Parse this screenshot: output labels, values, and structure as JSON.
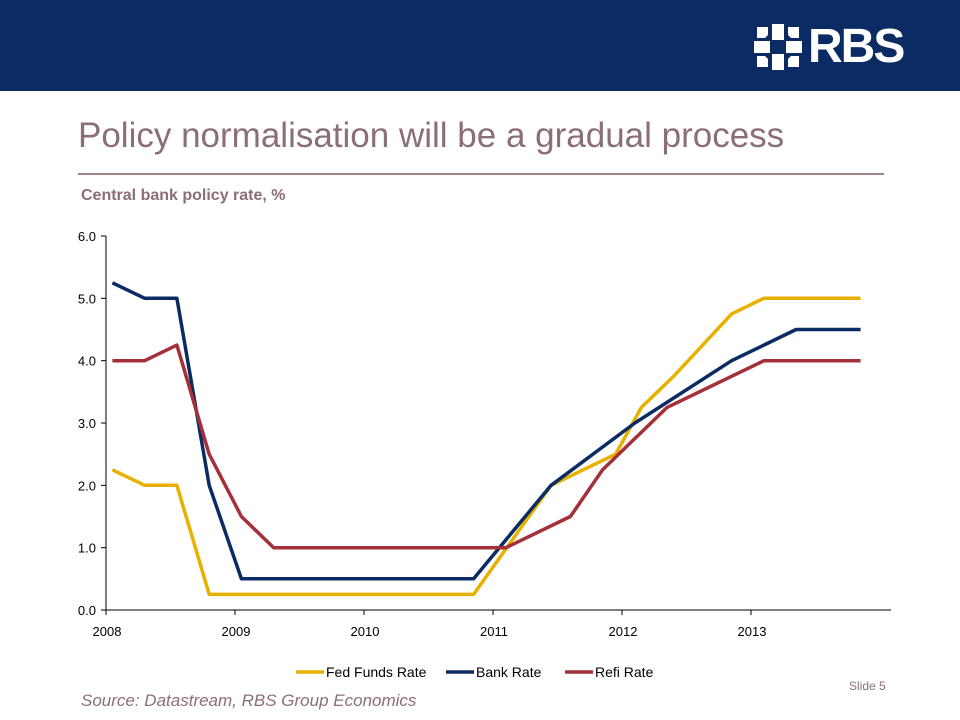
{
  "slide": {
    "title": "Policy normalisation will be a gradual process",
    "source": "Source: Datastream, RBS Group Economics",
    "slide_number": "Slide 5",
    "brand": "RBS",
    "colors": {
      "header": "#0a2b63",
      "title": "#8b6f74",
      "fed": "#e8b100",
      "boe": "#0a2b63",
      "ecb": "#a5303a"
    }
  },
  "chart_data": {
    "type": "line",
    "title": "Central bank policy rate, %",
    "xlabel": "",
    "ylabel": "",
    "xlim": [
      2008.0,
      2013.93
    ],
    "ylim": [
      0,
      6
    ],
    "yticks": [
      "0.0",
      "1.0",
      "2.0",
      "3.0",
      "4.0",
      "5.0",
      "6.0"
    ],
    "xticks": [
      "2008",
      "2009",
      "2010",
      "2011",
      "2012",
      "2013"
    ],
    "grid": false,
    "legend": "bottom",
    "series": [
      {
        "name": "Fed Funds Rate",
        "color": "#e8b100",
        "x": [
          2008.05,
          2008.3,
          2008.55,
          2008.8,
          2010.85,
          2011.45,
          2011.95,
          2012.15,
          2012.4,
          2012.85,
          2013.1,
          2013.85
        ],
        "y": [
          2.25,
          2.0,
          2.0,
          0.25,
          0.25,
          2.0,
          2.5,
          3.25,
          3.75,
          4.75,
          5.0,
          5.0
        ]
      },
      {
        "name": "Bank Rate",
        "color": "#0a2b63",
        "x": [
          2008.05,
          2008.3,
          2008.55,
          2008.8,
          2009.05,
          2010.85,
          2011.45,
          2012.1,
          2012.85,
          2013.35,
          2013.85
        ],
        "y": [
          5.25,
          5.0,
          5.0,
          2.0,
          0.5,
          0.5,
          2.0,
          3.0,
          4.0,
          4.5,
          4.5
        ]
      },
      {
        "name": "Refi Rate",
        "color": "#a5303a",
        "x": [
          2008.05,
          2008.3,
          2008.55,
          2008.8,
          2009.05,
          2009.3,
          2011.1,
          2011.6,
          2011.85,
          2012.35,
          2012.85,
          2013.1,
          2013.85
        ],
        "y": [
          4.0,
          4.0,
          4.25,
          2.5,
          1.5,
          1.0,
          1.0,
          1.5,
          2.25,
          3.25,
          3.75,
          4.0,
          4.0
        ]
      }
    ]
  }
}
